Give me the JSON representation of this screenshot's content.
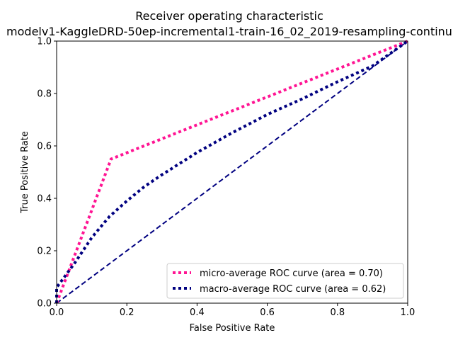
{
  "chart_data": {
    "type": "line",
    "title": "Receiver operating characteristic",
    "subtitle": "modelv1-KaggleDRD-50ep-incremental1-train-16_02_2019-resampling-continu",
    "xlabel": "False Positive Rate",
    "ylabel": "True Positive Rate",
    "xlim": [
      0.0,
      1.0
    ],
    "ylim": [
      0.0,
      1.0
    ],
    "xticks": [
      "0.0",
      "0.2",
      "0.4",
      "0.6",
      "0.8",
      "1.0"
    ],
    "yticks": [
      "0.0",
      "0.2",
      "0.4",
      "0.6",
      "0.8",
      "1.0"
    ],
    "grid": false,
    "legend_position": "lower-right",
    "series": [
      {
        "name": "micro-average ROC curve (area = 0.70)",
        "color": "#ff1493",
        "style": "dotted",
        "x": [
          0.0,
          0.155,
          1.0
        ],
        "y": [
          0.0,
          0.55,
          1.0
        ]
      },
      {
        "name": "macro-average ROC curve (area = 0.62)",
        "color": "#000080",
        "style": "dotted",
        "x": [
          0.0,
          0.0,
          0.05,
          0.1,
          0.15,
          0.2,
          0.25,
          0.3,
          0.4,
          0.5,
          0.6,
          0.7,
          0.8,
          0.9,
          1.0
        ],
        "y": [
          0.0,
          0.06,
          0.15,
          0.25,
          0.33,
          0.39,
          0.445,
          0.49,
          0.575,
          0.65,
          0.72,
          0.78,
          0.845,
          0.905,
          1.0
        ]
      },
      {
        "name": "",
        "color": "#000080",
        "style": "dashed",
        "x": [
          0.0,
          1.0
        ],
        "y": [
          0.0,
          1.0
        ]
      }
    ]
  }
}
